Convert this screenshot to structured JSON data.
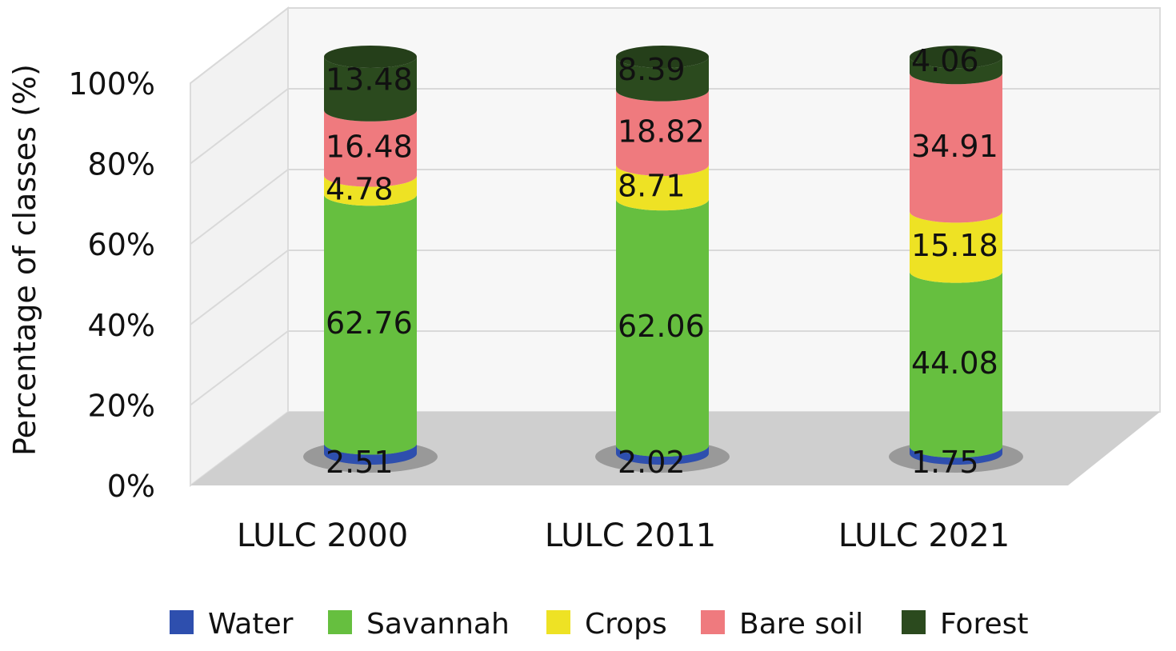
{
  "chart_data": {
    "type": "bar",
    "stacked": true,
    "categories": [
      "LULC 2000",
      "LULC 2011",
      "LULC 2021"
    ],
    "series": [
      {
        "name": "Water",
        "color": "#2e4fae",
        "values": [
          2.51,
          2.02,
          1.75
        ]
      },
      {
        "name": "Savannah",
        "color": "#66bf3f",
        "values": [
          62.76,
          62.06,
          44.08
        ]
      },
      {
        "name": "Crops",
        "color": "#eee224",
        "values": [
          4.78,
          8.71,
          15.18
        ]
      },
      {
        "name": "Bare soil",
        "color": "#ef7a7e",
        "values": [
          16.48,
          18.82,
          34.91
        ]
      },
      {
        "name": "Forest",
        "color": "#2b4a1e",
        "values": [
          13.48,
          8.39,
          4.06
        ]
      }
    ],
    "ylabel": "Percentage of classes (%)",
    "yticks": [
      "0%",
      "20%",
      "40%",
      "60%",
      "80%",
      "100%"
    ],
    "ylim": [
      0,
      100
    ],
    "grid": true,
    "legend_position": "bottom"
  }
}
